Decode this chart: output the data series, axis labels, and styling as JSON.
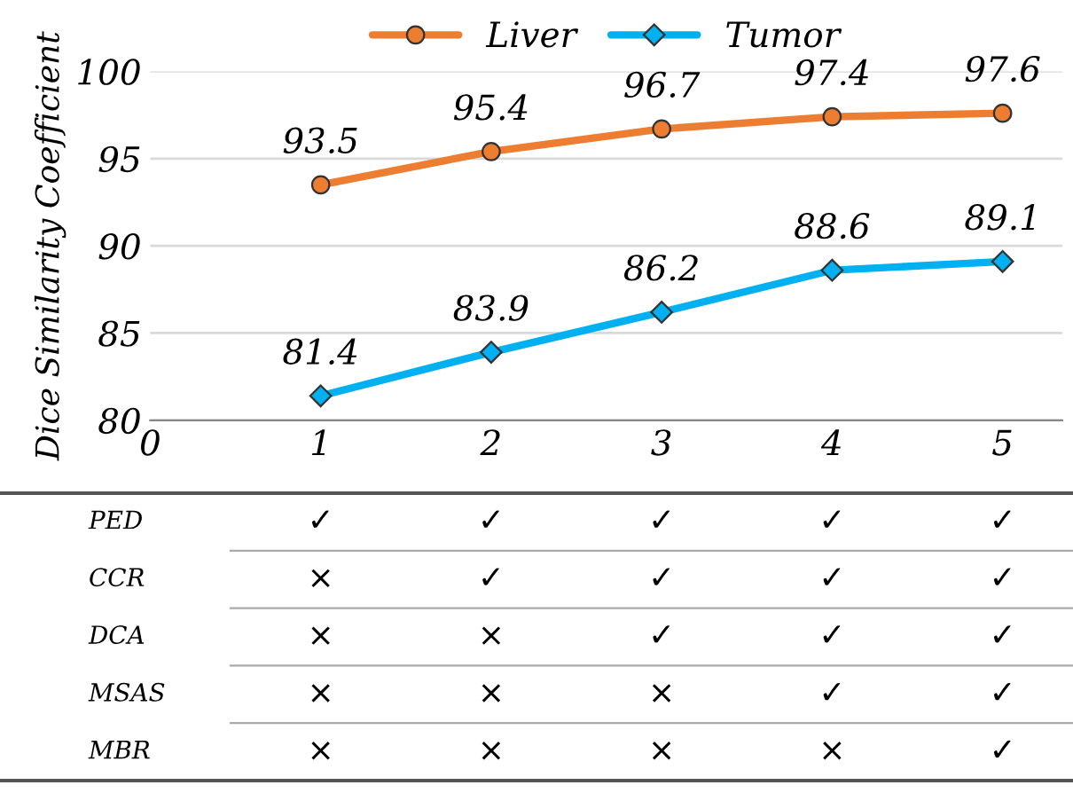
{
  "chart_data": {
    "type": "line",
    "ylabel": "Dice Similarity Coefficient",
    "x": [
      1,
      2,
      3,
      4,
      5
    ],
    "series": [
      {
        "name": "Liver",
        "color": "#ed7d31",
        "marker": "circle",
        "values": [
          93.5,
          95.4,
          96.7,
          97.4,
          97.6
        ]
      },
      {
        "name": "Tumor",
        "color": "#00b0f0",
        "marker": "diamond",
        "values": [
          81.4,
          83.9,
          86.2,
          88.6,
          89.1
        ]
      }
    ],
    "xlim": [
      0,
      5.35
    ],
    "xticks": [
      0,
      1,
      2,
      3,
      4,
      5
    ],
    "ylim": [
      80,
      100
    ],
    "yticks": [
      80,
      85,
      90,
      95,
      100
    ],
    "grid": "y",
    "legend": "top",
    "data_labels": true,
    "line_style": "solid",
    "annotations": [
      "PED",
      "✓",
      "✓",
      "✓",
      "✓",
      "✓",
      "CCR",
      "×",
      "✓",
      "✓",
      "✓",
      "✓",
      "DCA",
      "×",
      "×",
      "✓",
      "✓",
      "✓",
      "MSAS",
      "×",
      "×",
      "×",
      "✓",
      "✓",
      "MBR",
      "×",
      "×",
      "×",
      "×",
      "✓"
    ]
  }
}
